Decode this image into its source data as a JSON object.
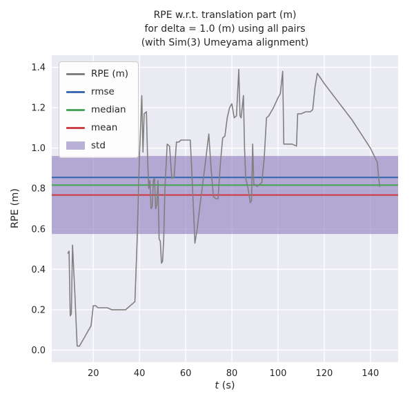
{
  "title": {
    "line1": "RPE w.r.t. translation part (m)",
    "line2": "for delta = 1.0 (m) using all pairs",
    "line3": "(with Sim(3) Umeyama alignment)"
  },
  "axis": {
    "ylabel": "RPE (m)",
    "xlabel_var": "t",
    "xlabel_rest": " (s)"
  },
  "colors": {
    "line": "#7f7f7f",
    "rmse": "#3b6bb3",
    "median": "#4ba65b",
    "mean": "#cc4049",
    "std": "#7c64b4",
    "plot_bg": "#eaeaf2",
    "grid": "#ffffff",
    "text": "#262626"
  },
  "legend": {
    "items": [
      {
        "label": "RPE (m)",
        "color": "#7f7f7f",
        "type": "line"
      },
      {
        "label": "rmse",
        "color": "#3b6bb3",
        "type": "line"
      },
      {
        "label": "median",
        "color": "#4ba65b",
        "type": "line"
      },
      {
        "label": "mean",
        "color": "#cc4049",
        "type": "line"
      },
      {
        "label": "std",
        "color": "#8172b2",
        "type": "patch"
      }
    ]
  },
  "chart_data": {
    "type": "line",
    "title": "RPE w.r.t. translation part (m)\nfor delta = 1.0 (m) using all pairs\n(with Sim(3) Umeyama alignment)",
    "xlabel": "t (s)",
    "ylabel": "RPE (m)",
    "xlim": [
      2,
      152
    ],
    "ylim": [
      -0.06,
      1.46
    ],
    "grid": true,
    "legend_position": "upper left",
    "xticks": [
      20,
      40,
      60,
      80,
      100,
      120,
      140
    ],
    "xtick_labels": [
      "20",
      "40",
      "60",
      "80",
      "100",
      "120",
      "140"
    ],
    "yticks": [
      0.0,
      0.2,
      0.4,
      0.6,
      0.8,
      1.0,
      1.2,
      1.4
    ],
    "ytick_labels": [
      "0.0",
      "0.2",
      "0.4",
      "0.6",
      "0.8",
      "1.0",
      "1.2",
      "1.4"
    ],
    "stats": {
      "rmse": 0.855,
      "median": 0.817,
      "mean": 0.768,
      "std": 0.193
    },
    "series": [
      {
        "name": "RPE (m)",
        "points": [
          [
            9,
            0.48
          ],
          [
            9.5,
            0.49
          ],
          [
            10,
            0.17
          ],
          [
            10.5,
            0.18
          ],
          [
            11,
            0.52
          ],
          [
            12,
            0.28
          ],
          [
            13,
            0.02
          ],
          [
            14,
            0.02
          ],
          [
            15,
            0.04
          ],
          [
            16,
            0.06
          ],
          [
            17,
            0.08
          ],
          [
            18,
            0.1
          ],
          [
            19,
            0.12
          ],
          [
            20,
            0.22
          ],
          [
            21,
            0.22
          ],
          [
            22,
            0.21
          ],
          [
            23,
            0.21
          ],
          [
            24,
            0.21
          ],
          [
            26,
            0.21
          ],
          [
            28,
            0.2
          ],
          [
            30,
            0.2
          ],
          [
            32,
            0.2
          ],
          [
            34,
            0.2
          ],
          [
            36,
            0.22
          ],
          [
            38,
            0.24
          ],
          [
            39,
            0.55
          ],
          [
            40,
            0.97
          ],
          [
            41,
            1.26
          ],
          [
            41.5,
            0.98
          ],
          [
            42,
            1.17
          ],
          [
            43,
            1.18
          ],
          [
            43.5,
            0.95
          ],
          [
            44,
            0.8
          ],
          [
            44.5,
            0.84
          ],
          [
            45,
            0.7
          ],
          [
            45.5,
            0.71
          ],
          [
            46,
            0.84
          ],
          [
            46.5,
            0.85
          ],
          [
            47,
            0.7
          ],
          [
            47.5,
            0.72
          ],
          [
            48,
            0.84
          ],
          [
            48.5,
            0.55
          ],
          [
            49,
            0.54
          ],
          [
            49.5,
            0.43
          ],
          [
            50,
            0.44
          ],
          [
            50.5,
            0.55
          ],
          [
            51,
            0.8
          ],
          [
            52,
            1.02
          ],
          [
            53,
            1.01
          ],
          [
            54,
            0.85
          ],
          [
            55,
            0.86
          ],
          [
            56,
            1.03
          ],
          [
            57,
            1.03
          ],
          [
            58,
            1.04
          ],
          [
            60,
            1.04
          ],
          [
            62,
            1.04
          ],
          [
            63,
            0.8
          ],
          [
            64,
            0.53
          ],
          [
            65,
            0.6
          ],
          [
            66,
            0.7
          ],
          [
            68,
            0.88
          ],
          [
            70,
            1.07
          ],
          [
            71,
            0.9
          ],
          [
            72,
            0.76
          ],
          [
            73,
            0.75
          ],
          [
            74,
            0.75
          ],
          [
            75,
            0.92
          ],
          [
            76,
            1.05
          ],
          [
            77,
            1.06
          ],
          [
            78,
            1.15
          ],
          [
            79,
            1.2
          ],
          [
            80,
            1.22
          ],
          [
            81,
            1.15
          ],
          [
            82,
            1.16
          ],
          [
            83,
            1.39
          ],
          [
            83.5,
            1.16
          ],
          [
            84,
            1.15
          ],
          [
            85,
            1.26
          ],
          [
            85.5,
            1.0
          ],
          [
            86,
            0.85
          ],
          [
            87,
            0.8
          ],
          [
            88,
            0.73
          ],
          [
            88.5,
            0.74
          ],
          [
            89,
            1.02
          ],
          [
            89.5,
            0.82
          ],
          [
            90,
            0.82
          ],
          [
            91,
            0.81
          ],
          [
            92,
            0.82
          ],
          [
            93,
            0.83
          ],
          [
            94,
            0.95
          ],
          [
            95,
            1.15
          ],
          [
            96,
            1.16
          ],
          [
            98,
            1.2
          ],
          [
            100,
            1.25
          ],
          [
            101,
            1.27
          ],
          [
            102,
            1.38
          ],
          [
            102.5,
            1.02
          ],
          [
            104,
            1.02
          ],
          [
            106,
            1.02
          ],
          [
            108,
            1.01
          ],
          [
            108.5,
            1.17
          ],
          [
            110,
            1.17
          ],
          [
            112,
            1.18
          ],
          [
            114,
            1.18
          ],
          [
            115,
            1.19
          ],
          [
            116,
            1.3
          ],
          [
            117,
            1.37
          ],
          [
            120,
            1.32
          ],
          [
            124,
            1.26
          ],
          [
            128,
            1.2
          ],
          [
            132,
            1.14
          ],
          [
            136,
            1.07
          ],
          [
            140,
            1.0
          ],
          [
            143,
            0.93
          ],
          [
            143.5,
            0.86
          ],
          [
            144,
            0.81
          ]
        ]
      }
    ]
  }
}
